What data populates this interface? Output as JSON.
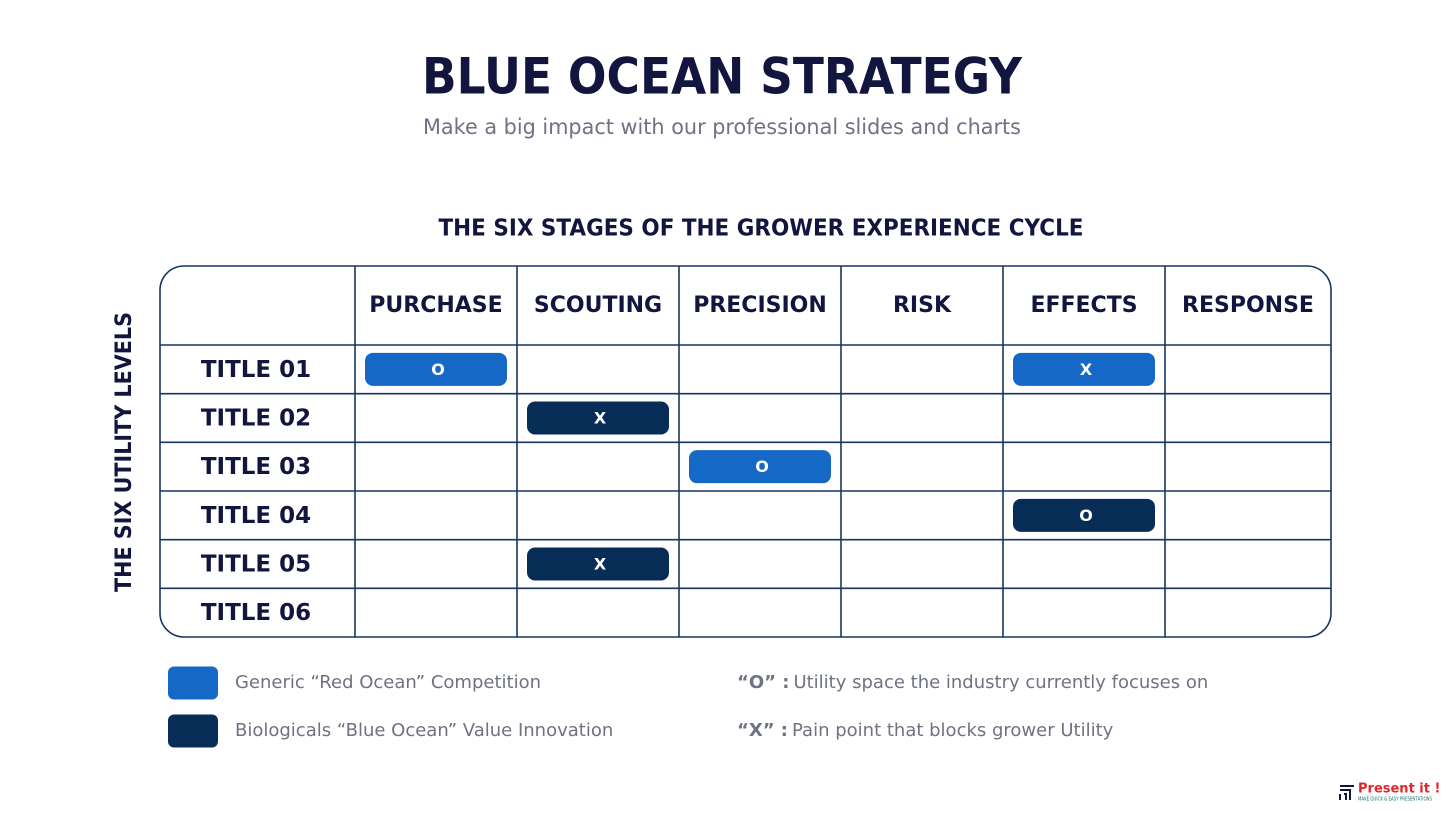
{
  "header": {
    "title": "BLUE OCEAN STRATEGY",
    "subtitle": "Make a big impact with our professional slides and charts"
  },
  "table": {
    "title": "THE SIX STAGES OF THE GROWER EXPERIENCE CYCLE",
    "side_label": "THE SIX UTILITY LEVELS",
    "columns": [
      "PURCHASE",
      "SCOUTING",
      "PRECISION",
      "RISK",
      "EFFECTS",
      "RESPONSE"
    ],
    "rows": [
      {
        "label": "TITLE 01",
        "cells": [
          {
            "text": "O",
            "color": "#1568c6"
          },
          null,
          null,
          null,
          {
            "text": "X",
            "color": "#1568c6"
          },
          null
        ]
      },
      {
        "label": "TITLE 02",
        "cells": [
          null,
          {
            "text": "X",
            "color": "#072d57"
          },
          null,
          null,
          null,
          null
        ]
      },
      {
        "label": "TITLE 03",
        "cells": [
          null,
          null,
          {
            "text": "O",
            "color": "#1568c6"
          },
          null,
          null,
          null
        ]
      },
      {
        "label": "TITLE 04",
        "cells": [
          null,
          null,
          null,
          null,
          {
            "text": "O",
            "color": "#072d57"
          },
          null
        ]
      },
      {
        "label": "TITLE 05",
        "cells": [
          null,
          {
            "text": "X",
            "color": "#072d57"
          },
          null,
          null,
          null,
          null
        ]
      },
      {
        "label": "TITLE 06",
        "cells": [
          null,
          null,
          null,
          null,
          null,
          null
        ]
      }
    ]
  },
  "legend": [
    {
      "color": "#1568c6",
      "label": "Generic “Red Ocean” Competition"
    },
    {
      "color": "#072d57",
      "label": "Biologicals “Blue Ocean”  Value Innovation"
    }
  ],
  "notes": [
    {
      "key": "“O” :",
      "text": "Utility space the industry currently focuses on"
    },
    {
      "key": "“X” :",
      "text": "Pain point that blocks grower Utility"
    }
  ],
  "logo": {
    "name": "Present it !",
    "tagline": "MAKE QUICK & EASY PRESENTATIONS"
  }
}
